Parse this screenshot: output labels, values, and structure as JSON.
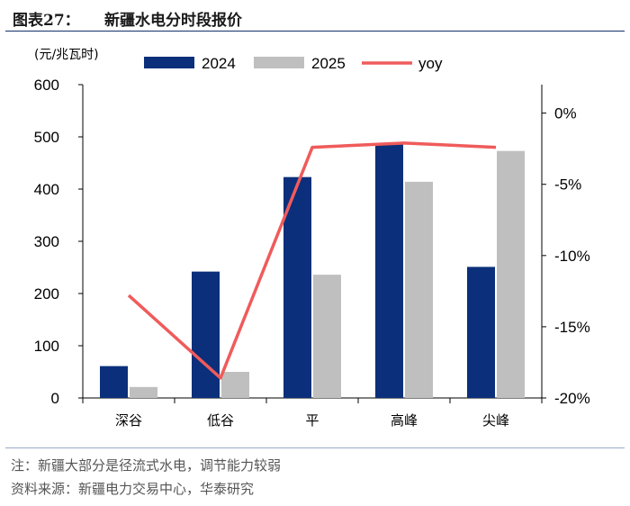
{
  "header": {
    "figure_label": "图表27：",
    "title": "新疆水电分时段报价"
  },
  "footer": {
    "note": "注：新疆大部分是径流式水电，调节能力较弱",
    "source": "资料来源：新疆电力交易中心，华泰研究"
  },
  "colors": {
    "s2024": "#0b2f7a",
    "s2025": "#bfbfbf",
    "yoy": "#f05b5b",
    "rule": "#13306b"
  },
  "chart_data": {
    "type": "bar",
    "unit_label": "(元/兆瓦时)",
    "categories": [
      "深谷",
      "低谷",
      "平",
      "高峰",
      "尖峰"
    ],
    "series": [
      {
        "name": "2024",
        "type": "bar",
        "axis": "left",
        "values": [
          61,
          242,
          423,
          487,
          251
        ]
      },
      {
        "name": "2025",
        "type": "bar",
        "axis": "left",
        "values": [
          21,
          50,
          236,
          414,
          473
        ]
      },
      {
        "name": "yoy",
        "type": "line",
        "axis": "right",
        "values": [
          -12.8,
          -18.6,
          -2.4,
          -2.1,
          -2.4
        ]
      }
    ],
    "left_axis": {
      "min": 0,
      "max": 600,
      "ticks": [
        0,
        100,
        200,
        300,
        400,
        500,
        600
      ]
    },
    "right_axis": {
      "min": -20,
      "max": 2,
      "ticks": [
        -20,
        -15,
        -10,
        -5,
        0
      ],
      "tick_labels": [
        "-20%",
        "-15%",
        "-10%",
        "-5%",
        "0%"
      ]
    },
    "legend_position": "top",
    "grid": false
  }
}
